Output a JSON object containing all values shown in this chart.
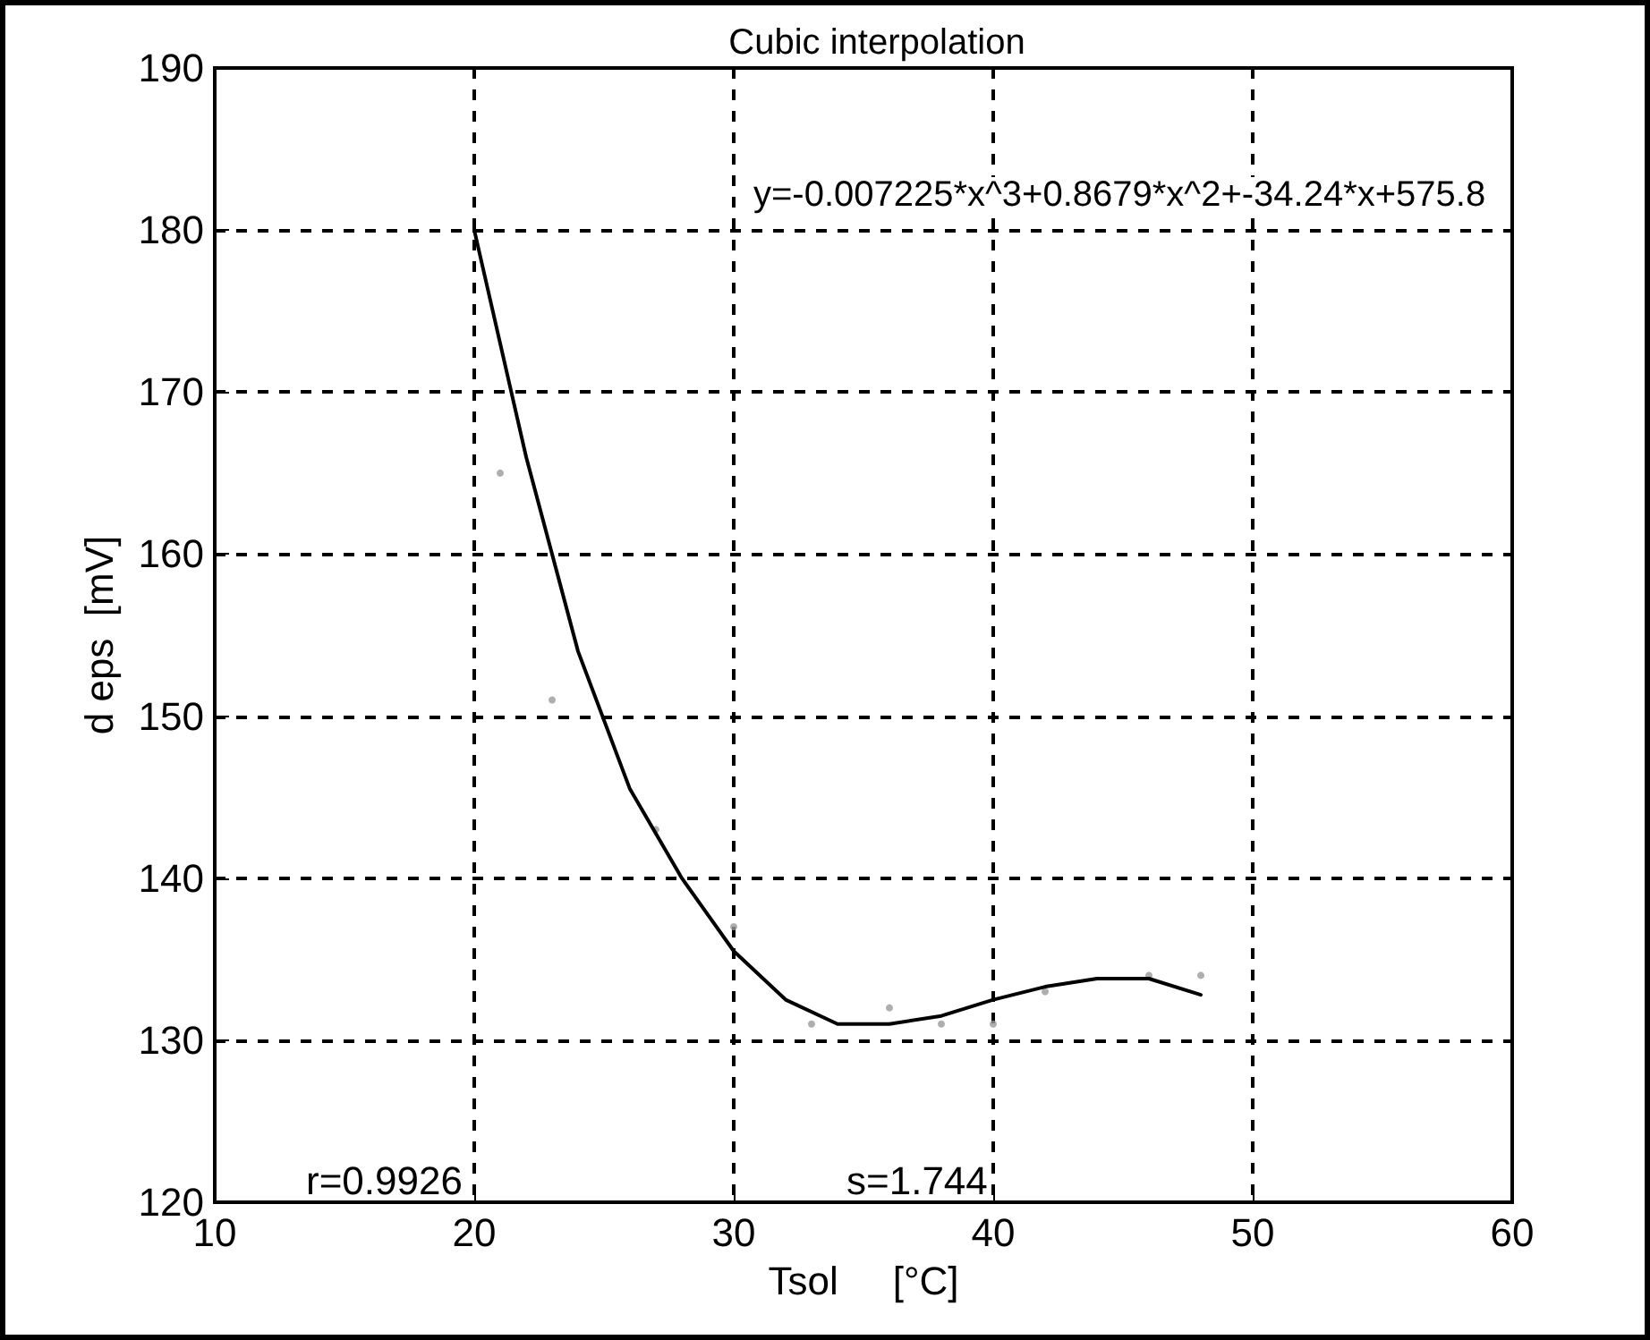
{
  "chart_data": {
    "type": "line",
    "title": "Cubic interpolation",
    "xlabel": "Tsol     [°C]",
    "ylabel": "d eps  [mV]",
    "xlim": [
      10,
      60
    ],
    "xticks": [
      10,
      20,
      30,
      40,
      50,
      60
    ],
    "ylim": [
      120,
      190
    ],
    "yticks": [
      120,
      130,
      140,
      150,
      160,
      170,
      180,
      190
    ],
    "grid": true,
    "line_style": "solid",
    "marker": "none",
    "series": [
      {
        "color": "#000000",
        "x": [
          20,
          22,
          24,
          26,
          28,
          30,
          32,
          34,
          36,
          38,
          40,
          42,
          44,
          46,
          48
        ],
        "values": [
          180,
          166,
          154,
          145.5,
          140,
          135.5,
          132.5,
          131,
          131,
          131.5,
          132.5,
          133.3,
          133.8,
          133.8,
          132.8
        ]
      },
      {
        "type": "scatter",
        "color": "#9a9a9a",
        "marker": "circle",
        "x": [
          21,
          23,
          27,
          30,
          33,
          36,
          38,
          40,
          42,
          46,
          48
        ],
        "values": [
          165,
          151,
          143,
          137,
          131,
          132,
          131,
          131,
          133,
          134,
          134
        ]
      }
    ],
    "annotations": [
      "y=-0.007225*x^3+0.8679*x^2+-34.24*x+575.8",
      "r=0.9926",
      "s=1.744"
    ]
  }
}
